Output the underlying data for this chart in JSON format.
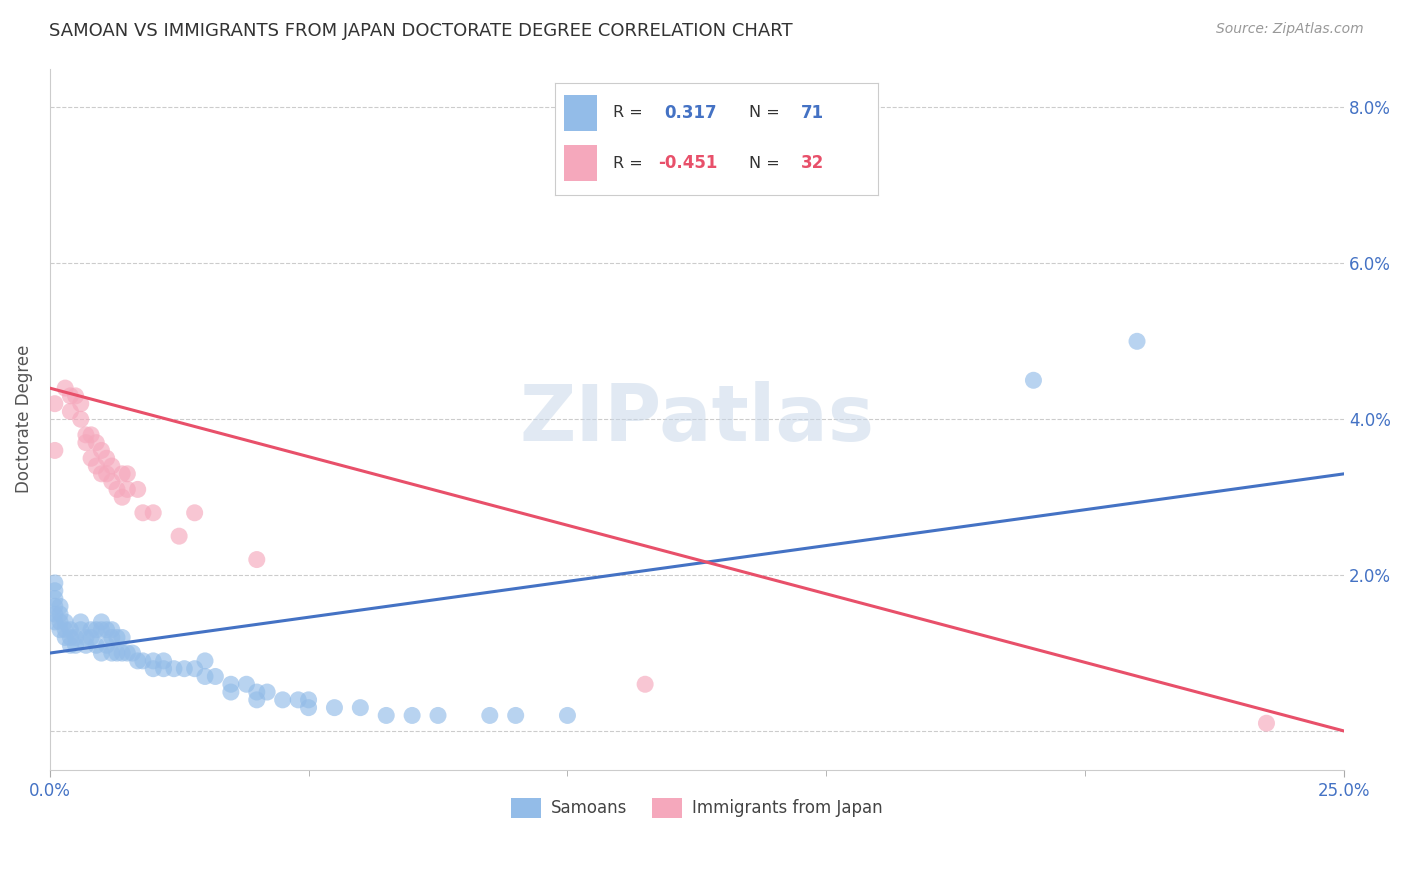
{
  "title": "SAMOAN VS IMMIGRANTS FROM JAPAN DOCTORATE DEGREE CORRELATION CHART",
  "source": "Source: ZipAtlas.com",
  "ylabel": "Doctorate Degree",
  "x_min": 0.0,
  "x_max": 0.25,
  "y_min": -0.005,
  "y_max": 0.085,
  "y_ticks": [
    0.0,
    0.02,
    0.04,
    0.06,
    0.08
  ],
  "y_tick_labels": [
    "",
    "2.0%",
    "4.0%",
    "6.0%",
    "8.0%"
  ],
  "samoans_color": "#93bce8",
  "japan_color": "#f5a8bc",
  "samoans_line_color": "#4472c4",
  "japan_line_color": "#e8506a",
  "background_color": "#ffffff",
  "grid_color": "#cccccc",
  "samoans_x": [
    0.001,
    0.001,
    0.001,
    0.001,
    0.001,
    0.001,
    0.002,
    0.002,
    0.002,
    0.002,
    0.003,
    0.003,
    0.003,
    0.004,
    0.004,
    0.004,
    0.005,
    0.005,
    0.006,
    0.006,
    0.007,
    0.007,
    0.008,
    0.008,
    0.009,
    0.009,
    0.01,
    0.01,
    0.01,
    0.011,
    0.011,
    0.012,
    0.012,
    0.012,
    0.013,
    0.013,
    0.014,
    0.014,
    0.015,
    0.016,
    0.017,
    0.018,
    0.02,
    0.02,
    0.022,
    0.022,
    0.024,
    0.026,
    0.028,
    0.03,
    0.03,
    0.032,
    0.035,
    0.035,
    0.038,
    0.04,
    0.04,
    0.042,
    0.045,
    0.048,
    0.05,
    0.05,
    0.055,
    0.06,
    0.065,
    0.07,
    0.075,
    0.085,
    0.09,
    0.1,
    0.19,
    0.21
  ],
  "samoans_y": [
    0.019,
    0.018,
    0.017,
    0.016,
    0.015,
    0.014,
    0.016,
    0.015,
    0.014,
    0.013,
    0.014,
    0.013,
    0.012,
    0.013,
    0.012,
    0.011,
    0.012,
    0.011,
    0.014,
    0.013,
    0.012,
    0.011,
    0.013,
    0.012,
    0.013,
    0.011,
    0.014,
    0.013,
    0.01,
    0.013,
    0.011,
    0.013,
    0.012,
    0.01,
    0.012,
    0.01,
    0.012,
    0.01,
    0.01,
    0.01,
    0.009,
    0.009,
    0.009,
    0.008,
    0.009,
    0.008,
    0.008,
    0.008,
    0.008,
    0.009,
    0.007,
    0.007,
    0.006,
    0.005,
    0.006,
    0.005,
    0.004,
    0.005,
    0.004,
    0.004,
    0.004,
    0.003,
    0.003,
    0.003,
    0.002,
    0.002,
    0.002,
    0.002,
    0.002,
    0.002,
    0.045,
    0.05
  ],
  "japan_x": [
    0.001,
    0.001,
    0.003,
    0.004,
    0.004,
    0.005,
    0.006,
    0.006,
    0.007,
    0.007,
    0.008,
    0.008,
    0.009,
    0.009,
    0.01,
    0.01,
    0.011,
    0.011,
    0.012,
    0.012,
    0.013,
    0.014,
    0.014,
    0.015,
    0.015,
    0.017,
    0.018,
    0.02,
    0.025,
    0.028,
    0.04,
    0.115,
    0.235
  ],
  "japan_y": [
    0.042,
    0.036,
    0.044,
    0.043,
    0.041,
    0.043,
    0.042,
    0.04,
    0.038,
    0.037,
    0.038,
    0.035,
    0.037,
    0.034,
    0.036,
    0.033,
    0.035,
    0.033,
    0.034,
    0.032,
    0.031,
    0.033,
    0.03,
    0.033,
    0.031,
    0.031,
    0.028,
    0.028,
    0.025,
    0.028,
    0.022,
    0.006,
    0.001
  ],
  "samoans_line_x": [
    0.0,
    0.25
  ],
  "samoans_line_y": [
    0.01,
    0.033
  ],
  "japan_line_x": [
    0.0,
    0.25
  ],
  "japan_line_y": [
    0.044,
    0.0
  ]
}
